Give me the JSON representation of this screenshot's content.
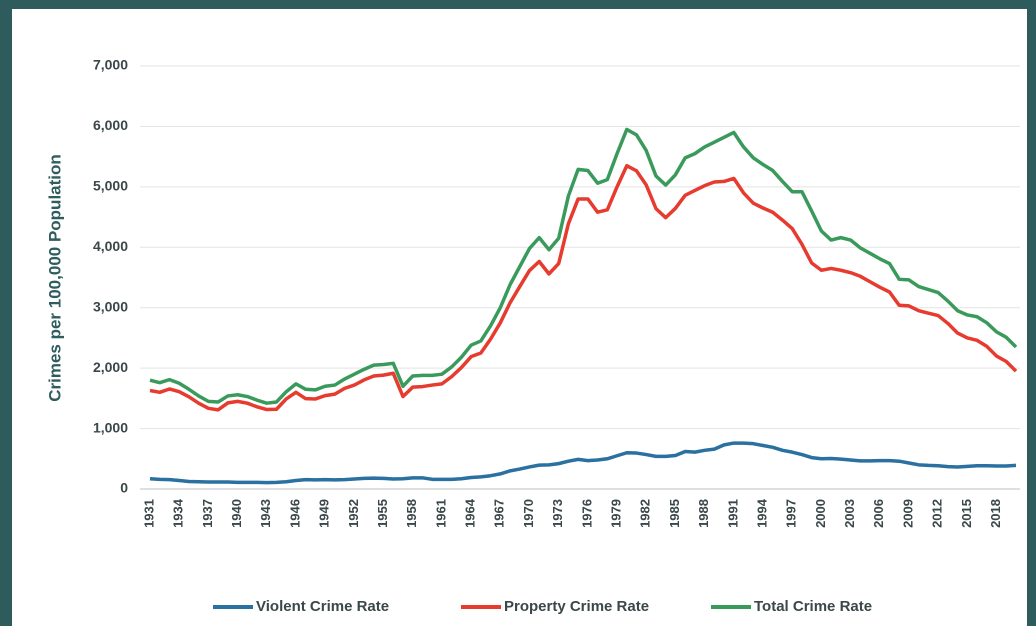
{
  "chart_data": {
    "type": "line",
    "y_label": "Crimes per 100,000 Population",
    "categories": [
      "1931",
      null,
      null,
      "1934",
      null,
      null,
      "1937",
      null,
      null,
      "1940",
      null,
      null,
      "1943",
      null,
      null,
      "1946",
      null,
      null,
      "1949",
      null,
      null,
      "1952",
      null,
      null,
      "1955",
      null,
      null,
      "1958",
      null,
      null,
      "1961",
      null,
      null,
      "1964",
      null,
      null,
      "1967",
      null,
      null,
      "1970",
      null,
      null,
      "1973",
      null,
      null,
      "1976",
      null,
      null,
      "1979",
      null,
      null,
      "1982",
      null,
      null,
      "1985",
      null,
      null,
      "1988",
      null,
      null,
      "1991",
      null,
      null,
      "1994",
      null,
      null,
      "1997",
      null,
      null,
      "2000",
      null,
      null,
      "2003",
      null,
      null,
      "2006",
      null,
      null,
      "2009",
      null,
      null,
      "2012",
      null,
      null,
      "2015",
      null,
      null,
      "2018",
      null,
      null
    ],
    "series": [
      {
        "name": "Violent Crime Rate",
        "color": "#2a70a0",
        "values": [
          170,
          160,
          155,
          140,
          125,
          120,
          115,
          115,
          115,
          110,
          110,
          110,
          105,
          110,
          120,
          140,
          155,
          150,
          155,
          150,
          155,
          165,
          175,
          180,
          175,
          165,
          170,
          185,
          185,
          160,
          160,
          160,
          170,
          190,
          200,
          220,
          250,
          300,
          330,
          365,
          395,
          400,
          420,
          460,
          490,
          470,
          480,
          500,
          550,
          600,
          595,
          570,
          540,
          540,
          555,
          620,
          610,
          640,
          660,
          730,
          760,
          760,
          750,
          720,
          690,
          640,
          610,
          570,
          520,
          500,
          505,
          495,
          480,
          465,
          465,
          470,
          470,
          460,
          430,
          400,
          390,
          385,
          370,
          365,
          375,
          385,
          385,
          380,
          380,
          390
        ]
      },
      {
        "name": "Property Crime Rate",
        "color": "#e63b2e",
        "values": [
          1630,
          1600,
          1655,
          1610,
          1525,
          1420,
          1335,
          1310,
          1425,
          1450,
          1420,
          1360,
          1315,
          1320,
          1490,
          1600,
          1495,
          1490,
          1545,
          1570,
          1665,
          1720,
          1805,
          1870,
          1885,
          1915,
          1530,
          1685,
          1695,
          1720,
          1740,
          1860,
          2010,
          2190,
          2250,
          2480,
          2750,
          3080,
          3350,
          3615,
          3765,
          3560,
          3730,
          4390,
          4800,
          4800,
          4580,
          4620,
          5000,
          5350,
          5265,
          5030,
          4640,
          4490,
          4645,
          4860,
          4940,
          5020,
          5080,
          5090,
          5140,
          4900,
          4730,
          4650,
          4580,
          4450,
          4310,
          4050,
          3740,
          3620,
          3650,
          3620,
          3580,
          3520,
          3430,
          3340,
          3260,
          3040,
          3030,
          2950,
          2910,
          2870,
          2740,
          2580,
          2500,
          2460,
          2360,
          2200,
          2110,
          1950
        ]
      },
      {
        "name": "Total Crime Rate",
        "color": "#3a9a5c",
        "values": [
          1800,
          1760,
          1810,
          1750,
          1650,
          1540,
          1450,
          1440,
          1540,
          1560,
          1530,
          1470,
          1420,
          1440,
          1610,
          1740,
          1650,
          1640,
          1700,
          1720,
          1820,
          1900,
          1980,
          2050,
          2060,
          2080,
          1700,
          1870,
          1880,
          1880,
          1900,
          2020,
          2180,
          2380,
          2450,
          2700,
          3000,
          3380,
          3680,
          3980,
          4160,
          3960,
          4150,
          4850,
          5290,
          5270,
          5060,
          5120,
          5550,
          5950,
          5860,
          5600,
          5180,
          5030,
          5200,
          5480,
          5550,
          5660,
          5740,
          5820,
          5900,
          5660,
          5480,
          5370,
          5270,
          5090,
          4920,
          4920,
          4600,
          4270,
          4120,
          4160,
          4120,
          3990,
          3900,
          3810,
          3730,
          3470,
          3460,
          3350,
          3300,
          3250,
          3110,
          2950,
          2880,
          2850,
          2750,
          2600,
          2510,
          2350
        ]
      }
    ],
    "ylim": [
      0,
      7000
    ],
    "yticks": [
      0,
      {
        "value": 1000,
        "label": "1,000"
      },
      {
        "value": 2000,
        "label": "2,000"
      },
      {
        "value": 3000,
        "label": "3,000"
      },
      {
        "value": 4000,
        "label": "4,000"
      },
      {
        "value": 5000,
        "label": "5,000"
      },
      {
        "value": 6000,
        "label": "6,000"
      },
      {
        "value": 7000,
        "label": "7,000"
      }
    ],
    "grid": true,
    "legend": "bottom"
  }
}
